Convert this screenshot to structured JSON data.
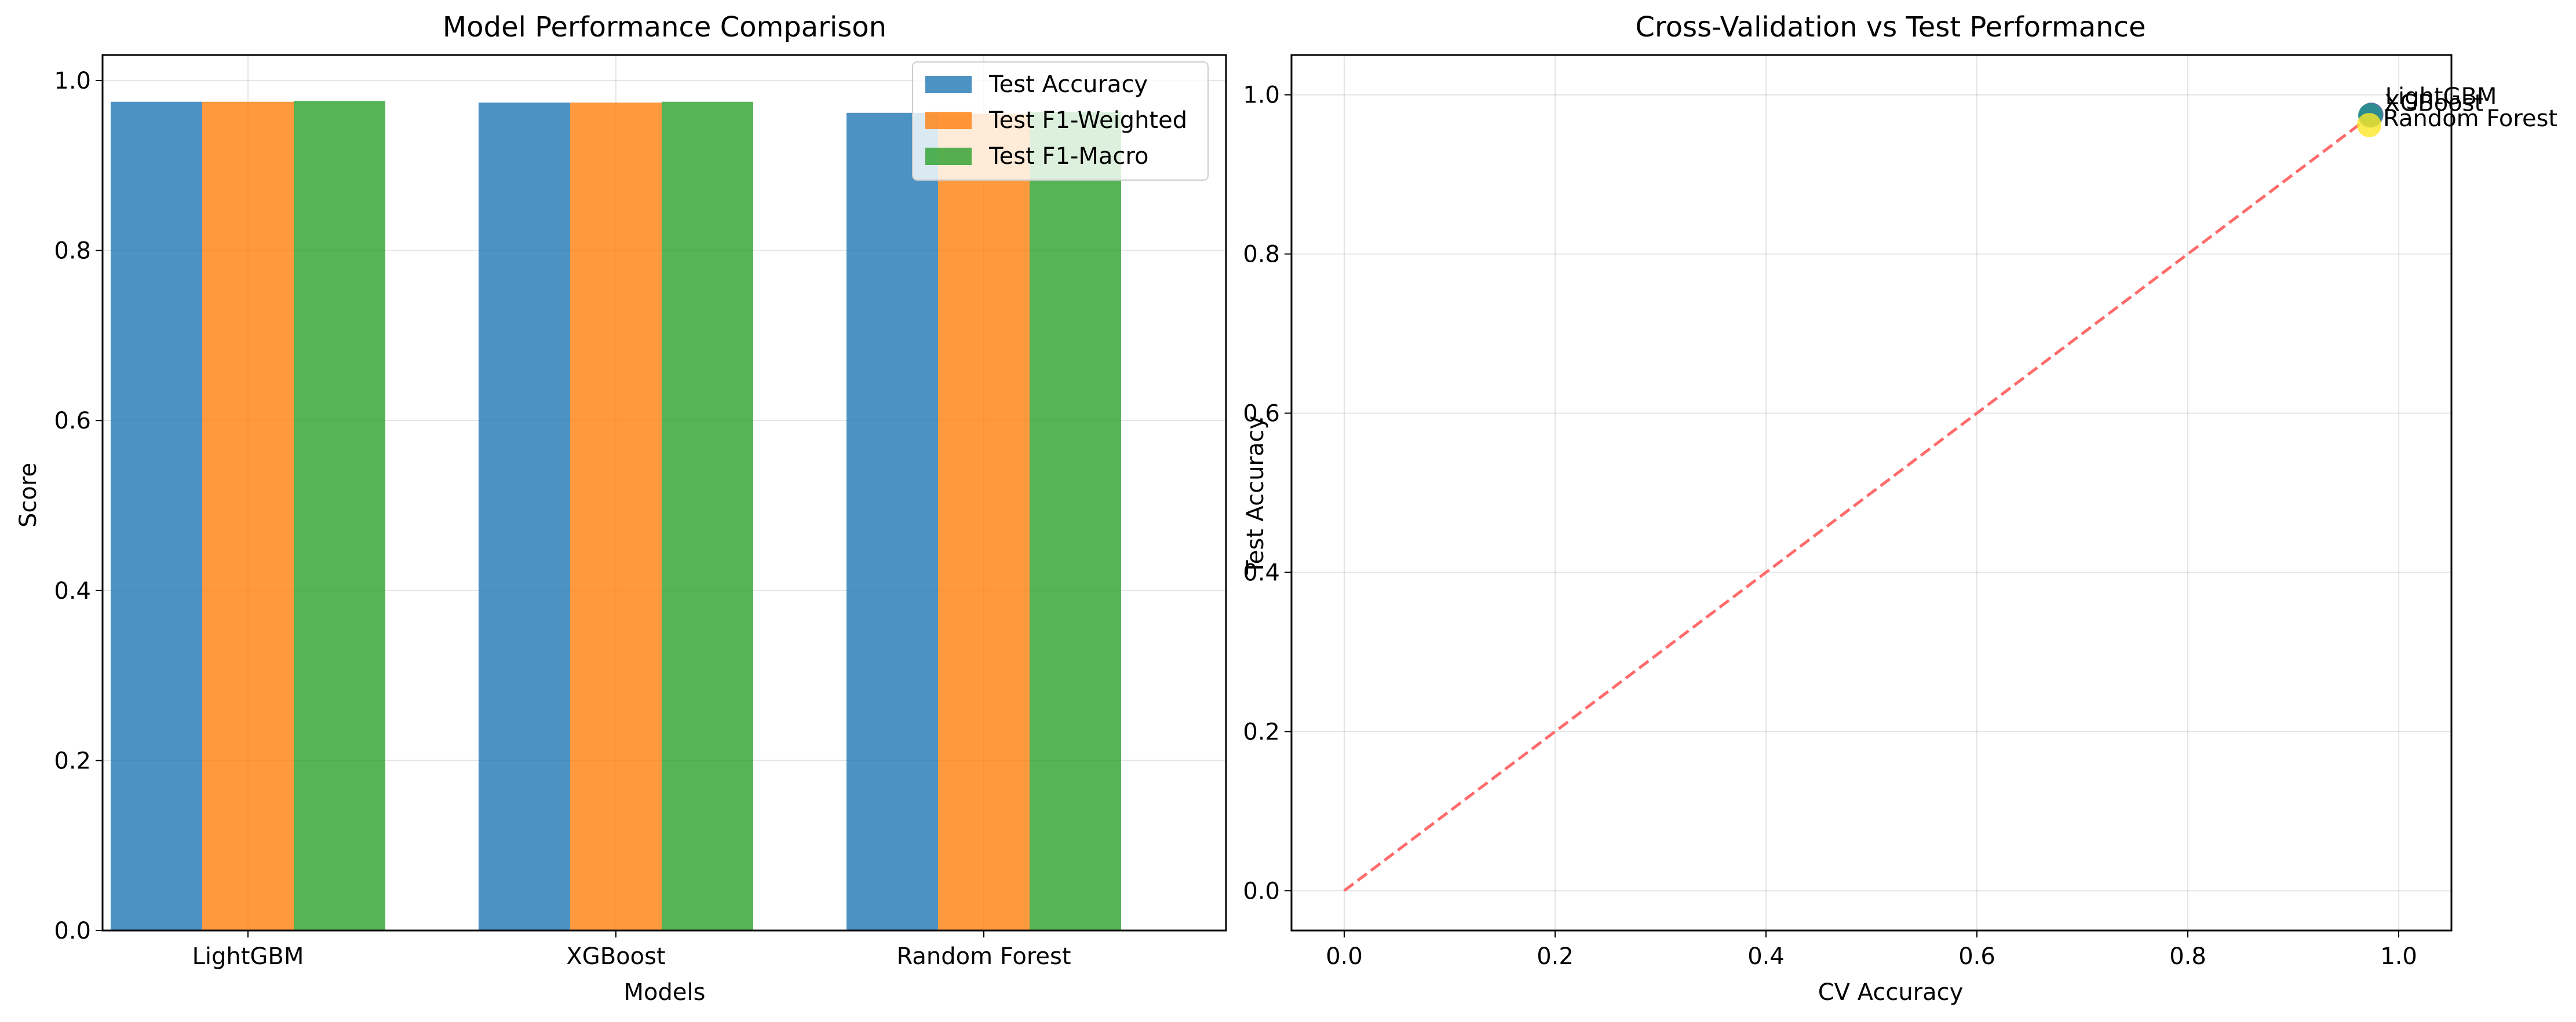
{
  "chart_data": [
    {
      "type": "bar",
      "title": "Model Performance Comparison",
      "xlabel": "Models",
      "ylabel": "Score",
      "categories": [
        "LightGBM",
        "XGBoost",
        "Random Forest"
      ],
      "series": [
        {
          "name": "Test Accuracy",
          "color": "#1f77b4",
          "values": [
            0.975,
            0.974,
            0.962
          ]
        },
        {
          "name": "Test F1-Weighted",
          "color": "#ff7f0e",
          "values": [
            0.975,
            0.974,
            0.961
          ]
        },
        {
          "name": "Test F1-Macro",
          "color": "#2ca02c",
          "values": [
            0.976,
            0.975,
            0.963
          ]
        }
      ],
      "ylim": [
        0,
        1.03
      ],
      "yticks": [
        "0.0",
        "0.2",
        "0.4",
        "0.6",
        "0.8",
        "1.0"
      ],
      "grid": true,
      "legend_position": "top-right"
    },
    {
      "type": "scatter",
      "title": "Cross-Validation vs Test Performance",
      "xlabel": "CV Accuracy",
      "ylabel": "Test Accuracy",
      "points": [
        {
          "label": "LightGBM",
          "x": 0.974,
          "y": 0.975,
          "color": "#3b528b"
        },
        {
          "label": "XGBoost",
          "x": 0.973,
          "y": 0.974,
          "color": "#21918c"
        },
        {
          "label": "Random Forest",
          "x": 0.972,
          "y": 0.962,
          "color": "#fde725"
        }
      ],
      "reference_line": {
        "from": [
          0,
          0
        ],
        "to": [
          0.97,
          0.97
        ],
        "color": "#ff6b6b",
        "style": "dashed"
      },
      "xlim": [
        -0.05,
        1.05
      ],
      "ylim": [
        -0.05,
        1.05
      ],
      "xticks": [
        "0.0",
        "0.2",
        "0.4",
        "0.6",
        "0.8",
        "1.0"
      ],
      "yticks": [
        "0.0",
        "0.2",
        "0.4",
        "0.6",
        "0.8",
        "1.0"
      ],
      "grid": true
    }
  ]
}
